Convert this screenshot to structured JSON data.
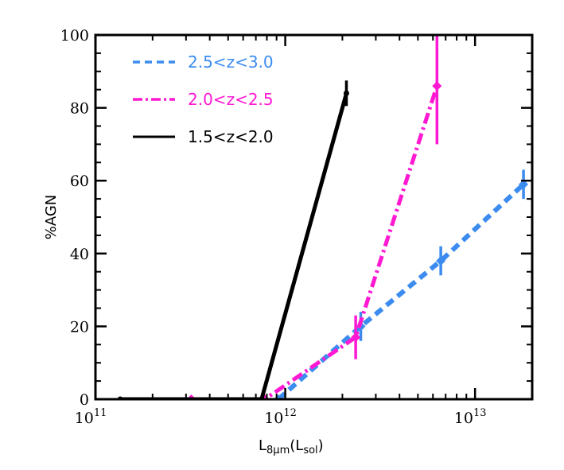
{
  "chart_data": {
    "type": "line",
    "title": "",
    "xlabel": {
      "main": "L",
      "sub": "8μm",
      "open": "(L",
      "sub2": "sol",
      "close": ")"
    },
    "ylabel": "%AGN",
    "xscale": "log",
    "xlim": [
      100000000000.0,
      20000000000000.0
    ],
    "ylim": [
      0,
      100
    ],
    "x_tick_labels": [
      {
        "value": 100000000000.0,
        "base": "10",
        "exp": "11"
      },
      {
        "value": 1000000000000.0,
        "base": "10",
        "exp": "12"
      },
      {
        "value": 10000000000000.0,
        "base": "10",
        "exp": "13"
      }
    ],
    "y_tick_labels": [
      "0",
      "20",
      "40",
      "60",
      "80",
      "100"
    ],
    "y_ticks": [
      0,
      20,
      40,
      60,
      80,
      100
    ],
    "legend_position": "top-left",
    "series": [
      {
        "name": "2.5<z<3.0",
        "color": "#3c8cf0",
        "linestyle": "dashed",
        "marker": "diamond",
        "x": [
          920000000000.0,
          2500000000000.0,
          6600000000000.0,
          18000000000000.0
        ],
        "y": [
          0,
          20,
          38,
          59
        ],
        "yerr": [
          0,
          4,
          4,
          4
        ]
      },
      {
        "name": "2.0<z<2.5",
        "color": "#ff19d2",
        "linestyle": "dashdot",
        "marker": "diamond",
        "x": [
          320000000000.0,
          780000000000.0,
          2350000000000.0,
          6300000000000.0
        ],
        "y": [
          0,
          0,
          17,
          86
        ],
        "yerr": [
          0,
          0,
          6,
          16
        ]
      },
      {
        "name": "1.5<z<2.0",
        "color": "#000000",
        "linestyle": "solid",
        "marker": "circle",
        "x": [
          135000000000.0,
          750000000000.0,
          2100000000000.0
        ],
        "y": [
          0,
          0,
          84
        ],
        "yerr": [
          0,
          0,
          3.5
        ]
      }
    ]
  }
}
